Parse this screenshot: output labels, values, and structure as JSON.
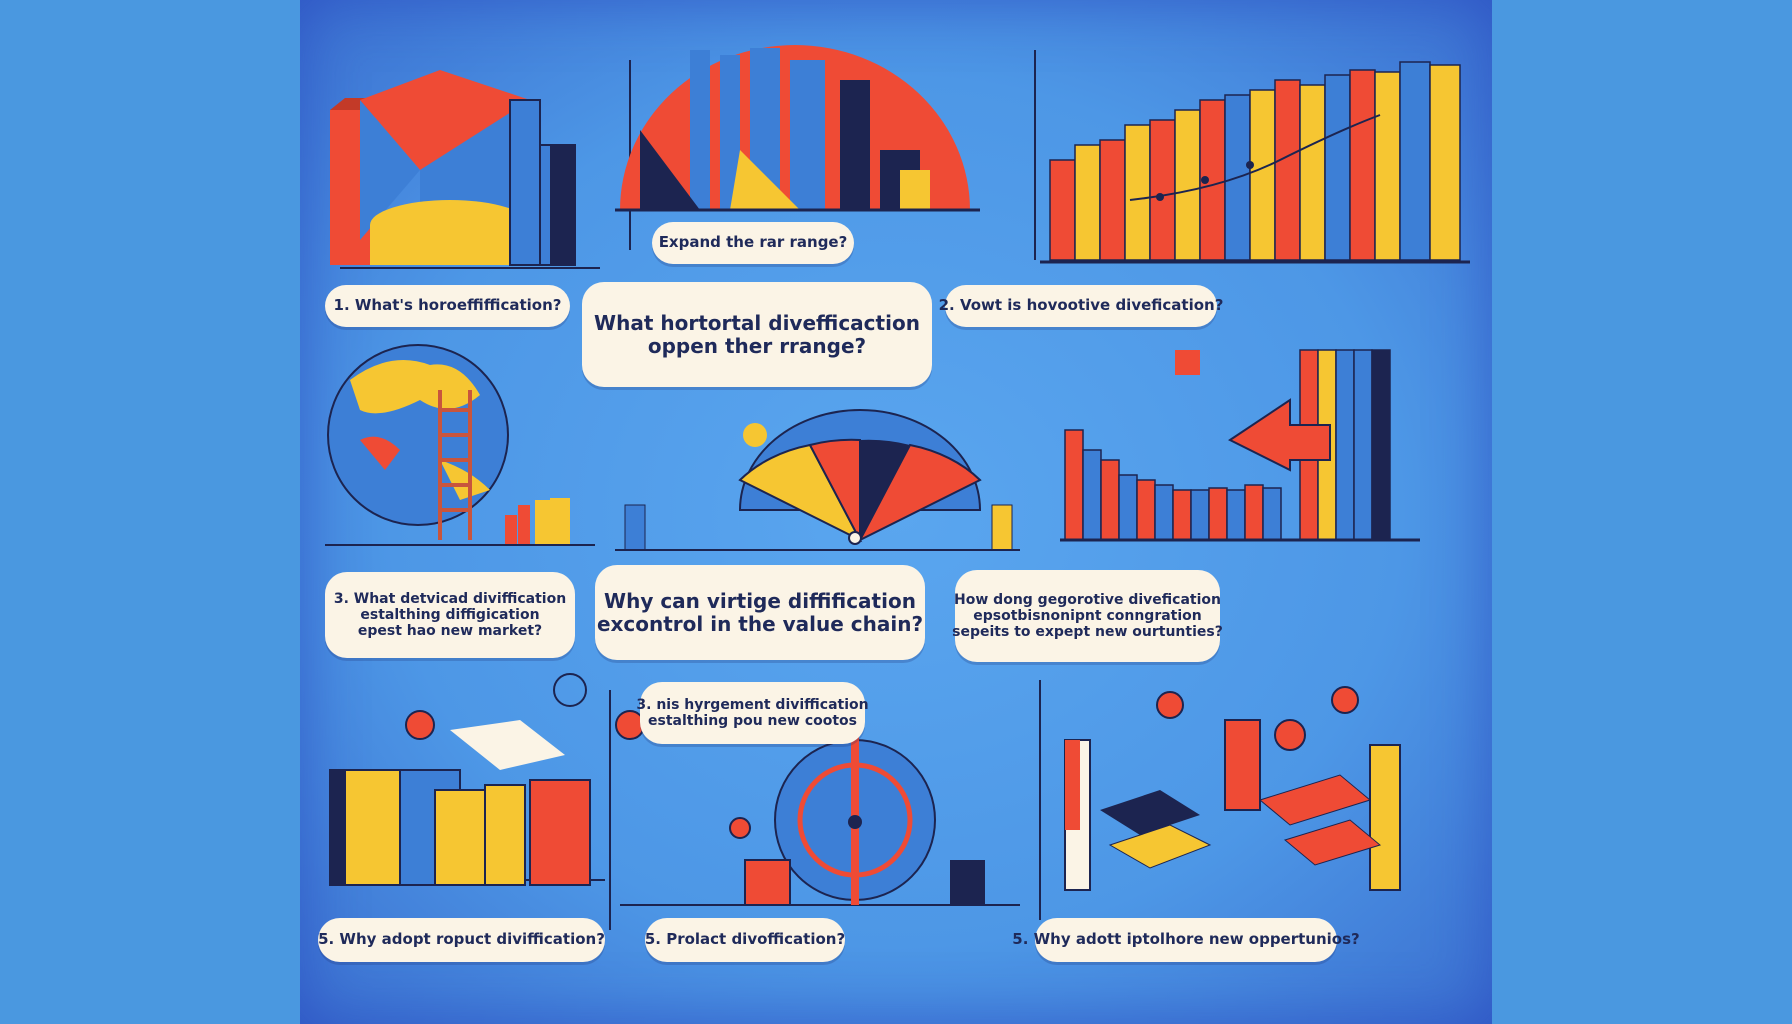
{
  "colors": {
    "background": "#4a98e0",
    "red": "#ef4b35",
    "yellow": "#f6c632",
    "blue": "#3d7fd6",
    "navy": "#1c2450",
    "cream": "#fbf4e6"
  },
  "labels": {
    "top_center": "Expand the rar range?",
    "q1": "1. What's horoeffiffication?",
    "center_main_line1": "What hortortal divefficaction",
    "center_main_line2": "oppen ther rrange?",
    "q2": "2. Vowt is hovootive divefication?",
    "q3_line1": "3. What detvicad diviffication",
    "q3_line2": "estalthing diffigication",
    "q3_line3": "epest hao new market?",
    "center_mid_line1": "Why can virtige diffification",
    "center_mid_line2": "excontrol in the value chain?",
    "q4_line1": "How dong gegorotive divefication",
    "q4_line2": "epsotbisnonipnt conngration",
    "q4_line3": "sepeits to expept new ourtunties?",
    "center_low_line1": "3. nis hyrgement diviffication",
    "center_low_line2": "estalthing pou new cootos",
    "q5_left": "5. Why adopt ropuct diviffication?",
    "q5_center": "5. Prolact divoffication?",
    "q5_right": "5. Why adott iptolhore new oppertunios?"
  }
}
